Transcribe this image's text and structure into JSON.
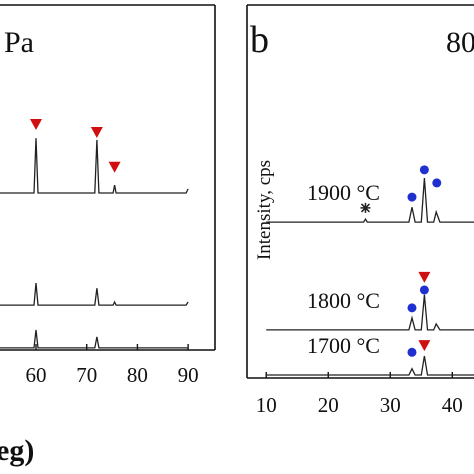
{
  "chart_data": [
    {
      "type": "line",
      "title": "Pa",
      "xlabel": "eg)",
      "xlim": [
        52.9,
        95.3
      ],
      "ylim": [
        0,
        100
      ],
      "xticks": [
        60,
        70,
        80,
        90
      ],
      "series": [
        {
          "color": "#222222",
          "x": [
            52.9,
            59.6,
            60,
            60.4,
            71.6,
            72,
            72.4,
            75.2,
            75.5,
            75.8,
            89.6,
            90
          ],
          "values": [
            45.5,
            45.5,
            61.4,
            45.5,
            45.5,
            60.9,
            45.5,
            45.5,
            47.8,
            45.5,
            45.5,
            46.7
          ]
        },
        {
          "color": "#222222",
          "x": [
            52.9,
            59.6,
            60,
            60.4,
            71.6,
            72,
            72.4,
            75.2,
            75.5,
            75.8,
            89.6,
            90
          ],
          "values": [
            13,
            13,
            19.4,
            13,
            13,
            17.9,
            13,
            13,
            13.9,
            13,
            13,
            13.9
          ]
        },
        {
          "color": "#222222",
          "x": [
            52.9,
            59.6,
            60,
            60.4,
            71.6,
            72,
            72.4,
            90
          ],
          "values": [
            0.6,
            0.6,
            5.8,
            0.6,
            0.6,
            3.8,
            0.6,
            0.6
          ]
        }
      ],
      "markers": [
        {
          "shape": "triangle",
          "color": "#d01010",
          "x": 60,
          "y": 65.5
        },
        {
          "shape": "triangle",
          "color": "#d01010",
          "x": 72,
          "y": 63.2
        },
        {
          "shape": "triangle",
          "color": "#d01010",
          "x": 75.5,
          "y": 53.1
        }
      ]
    },
    {
      "type": "line",
      "panel_label": "b",
      "title": "80",
      "ylabel": "Intensity, cps",
      "xlim": [
        6.9,
        43.5
      ],
      "ylim": [
        0,
        100
      ],
      "xticks": [
        10,
        20,
        30,
        40
      ],
      "series": [
        {
          "name": "1900 °C",
          "color": "#222222",
          "x": [
            10,
            25.7,
            26,
            26.3,
            33,
            33.5,
            34,
            35,
            35.5,
            36,
            37,
            37.4,
            38,
            43.5
          ],
          "values": [
            41.8,
            41.8,
            42.6,
            41.8,
            41.8,
            45.8,
            41.8,
            41.8,
            53.6,
            41.8,
            41.8,
            44.5,
            41.8,
            41.8
          ]
        },
        {
          "name": "1800 °C",
          "color": "#222222",
          "x": [
            10,
            33,
            33.5,
            34,
            35,
            35.5,
            36,
            37,
            37.4,
            38,
            43.5
          ],
          "values": [
            12.9,
            12.9,
            16.1,
            12.9,
            12.9,
            22.3,
            12.9,
            12.9,
            14.5,
            12.9,
            12.9
          ]
        },
        {
          "name": "1700 °C",
          "color": "#222222",
          "x": [
            10,
            33,
            33.5,
            34,
            35,
            35.5,
            36,
            43.5
          ],
          "values": [
            0.8,
            0.8,
            2.5,
            0.8,
            0.8,
            5.9,
            0.8,
            0.8
          ]
        }
      ],
      "markers": [
        {
          "shape": "star",
          "color": "#222222",
          "x": 26,
          "y": 45.6
        },
        {
          "shape": "circle",
          "color": "#1f2fd0",
          "x": 33.5,
          "y": 48.5
        },
        {
          "shape": "circle",
          "color": "#1f2fd0",
          "x": 35.5,
          "y": 55.8
        },
        {
          "shape": "circle",
          "color": "#1f2fd0",
          "x": 37.5,
          "y": 52.3
        },
        {
          "shape": "triangle",
          "color": "#d01010",
          "x": 35.5,
          "y": 27.1
        },
        {
          "shape": "circle",
          "color": "#1f2fd0",
          "x": 33.5,
          "y": 18.8
        },
        {
          "shape": "circle",
          "color": "#1f2fd0",
          "x": 35.5,
          "y": 23.6
        },
        {
          "shape": "triangle",
          "color": "#d01010",
          "x": 35.5,
          "y": 8.8
        },
        {
          "shape": "circle",
          "color": "#1f2fd0",
          "x": 33.5,
          "y": 6.9
        }
      ]
    }
  ]
}
